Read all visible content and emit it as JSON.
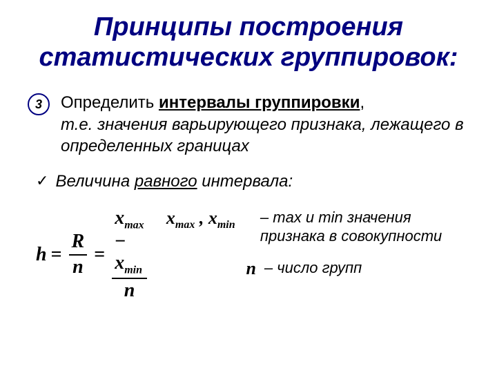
{
  "title": {
    "line1": "Принципы построения",
    "line2": "статистических группировок:",
    "color": "#000080",
    "fontsize": 38
  },
  "item": {
    "number": "3",
    "circle_border_color": "#000080",
    "lead": "Определить ",
    "underlined": "интервалы группировки",
    "comma": ",",
    "rest": "т.е. значения варьирующего признака, лежащего в определенных границах"
  },
  "sub": {
    "checkmark": "✓",
    "pre": "Величина ",
    "underlined": "равного",
    "post": " интервала:"
  },
  "formula": {
    "h": "h",
    "eq": "=",
    "R": "R",
    "n": "n",
    "xmax": "x",
    "xmax_sub": "max",
    "minus": "−",
    "xmin": "x",
    "xmin_sub": "min"
  },
  "defs": {
    "sym1_a": "x",
    "sym1_a_sub": "max",
    "sym1_sep": " , ",
    "sym1_b": "x",
    "sym1_b_sub": "min",
    "text1": "– max и min значения признака в совокупности",
    "sym2": "n",
    "text2": "– число групп"
  },
  "style": {
    "text_color": "#000000",
    "background": "#ffffff",
    "body_fontsize": 24,
    "def_fontsize": 22,
    "formula_fontsize": 28
  }
}
